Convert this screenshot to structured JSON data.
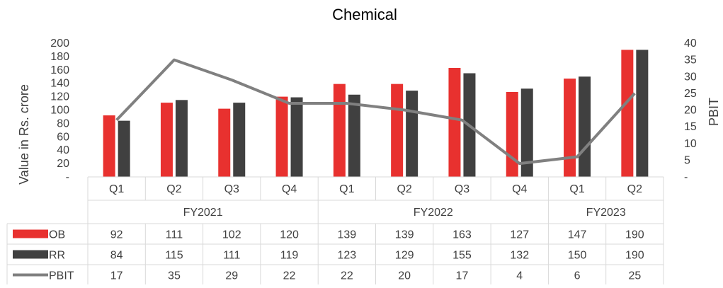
{
  "chart_data": {
    "type": "bar",
    "title": "Chemical",
    "ylabel": "Value in Rs. crore",
    "y2label": "PBIT",
    "ylim": [
      0,
      200
    ],
    "y2lim": [
      0,
      40
    ],
    "y_ticks": [
      "-",
      "20",
      "40",
      "60",
      "80",
      "100",
      "120",
      "140",
      "160",
      "180",
      "200"
    ],
    "y2_ticks": [
      "-",
      "5",
      "10",
      "15",
      "20",
      "25",
      "30",
      "35",
      "40"
    ],
    "categories": [
      "Q1",
      "Q2",
      "Q3",
      "Q4",
      "Q1",
      "Q2",
      "Q3",
      "Q4",
      "Q1",
      "Q2"
    ],
    "groups": [
      {
        "label": "FY2021",
        "count": 4
      },
      {
        "label": "FY2022",
        "count": 4
      },
      {
        "label": "FY2023",
        "count": 2
      }
    ],
    "series": [
      {
        "name": "OB",
        "type": "bar",
        "axis": "left",
        "color": "#e8312f",
        "values": [
          92,
          111,
          102,
          120,
          139,
          139,
          163,
          127,
          147,
          190
        ]
      },
      {
        "name": "RR",
        "type": "bar",
        "axis": "left",
        "color": "#404040",
        "values": [
          84,
          115,
          111,
          119,
          123,
          129,
          155,
          132,
          150,
          190
        ]
      },
      {
        "name": "PBIT",
        "type": "line",
        "axis": "right",
        "color": "#808080",
        "values": [
          17,
          35,
          29,
          22,
          22,
          20,
          17,
          4,
          6,
          25
        ]
      }
    ],
    "legend": "data-table"
  }
}
